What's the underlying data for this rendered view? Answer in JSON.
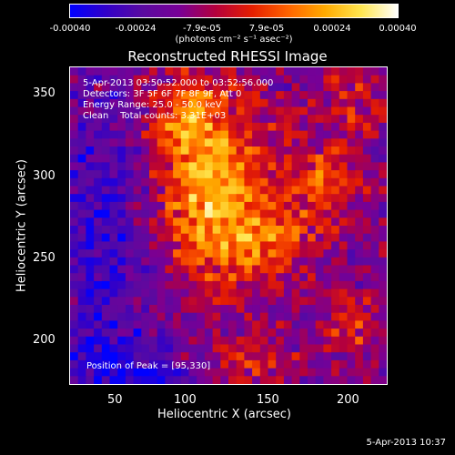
{
  "colorbar": {
    "ticks": [
      "-0.00040",
      "-0.00024",
      "-7.9e-05",
      "7.9e-05",
      "0.00024",
      "0.00040"
    ],
    "unit_label": "(photons cm⁻² s⁻¹ asec⁻²)",
    "colors": [
      "#0000ff",
      "#3200c8",
      "#5a0aa0",
      "#780096",
      "#b4003c",
      "#e61e00",
      "#ff6400",
      "#ffaa00",
      "#ffe650",
      "#ffffff"
    ]
  },
  "plot": {
    "title": "Reconstructed RHESSI Image",
    "xlabel": "Heliocentric X (arcsec)",
    "ylabel": "Heliocentric Y (arcsec)",
    "xticks": [
      "50",
      "100",
      "150",
      "200"
    ],
    "yticks": [
      "200",
      "250",
      "300",
      "350"
    ],
    "xlim": [
      30,
      222
    ],
    "ylim": [
      172,
      366
    ],
    "info_lines": [
      "5-Apr-2013 03:50:52.000 to 03:52:56.000",
      "Detectors: 3F 5F 6F 7F 8F 9F, Att 0",
      "Energy Range: 25.0 - 50.0 keV",
      "Clean    Total counts: 3.31E+03"
    ],
    "peak_label": "Position of Peak = [95,330]"
  },
  "footer": {
    "timestamp": "5-Apr-2013 10:37"
  }
}
